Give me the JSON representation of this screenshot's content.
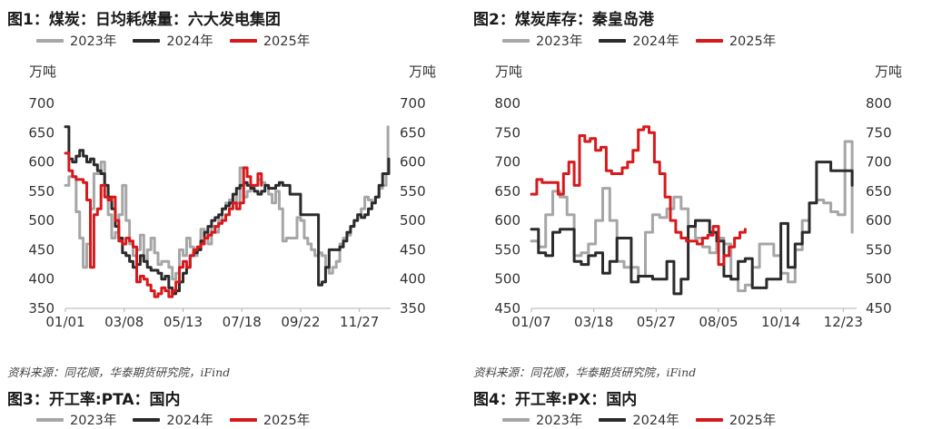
{
  "chart_data": [
    {
      "type": "line",
      "title": "图1：煤炭：日均耗煤量：六大发电集团",
      "ylabel_left": "万吨",
      "ylabel_right": "万吨",
      "ylim": [
        350,
        700
      ],
      "yticks": [
        350,
        400,
        450,
        500,
        550,
        600,
        650,
        700
      ],
      "xlim": [
        0,
        365
      ],
      "xticks": [
        {
          "label": "01/01",
          "day": 0
        },
        {
          "label": "03/08",
          "day": 66
        },
        {
          "label": "05/13",
          "day": 132
        },
        {
          "label": "07/18",
          "day": 198
        },
        {
          "label": "09/22",
          "day": 264
        },
        {
          "label": "11/27",
          "day": 330
        }
      ],
      "legend_position": "top-left",
      "grid": false,
      "series": [
        {
          "name": "2023年",
          "color": "#a6a6a6",
          "x": [
            0,
            4,
            8,
            12,
            16,
            20,
            24,
            28,
            32,
            36,
            40,
            44,
            48,
            52,
            56,
            60,
            64,
            68,
            72,
            76,
            80,
            84,
            88,
            92,
            96,
            100,
            104,
            108,
            112,
            116,
            120,
            124,
            128,
            132,
            136,
            140,
            144,
            148,
            152,
            156,
            160,
            164,
            168,
            172,
            176,
            180,
            184,
            188,
            192,
            196,
            200,
            204,
            208,
            212,
            216,
            220,
            224,
            228,
            232,
            236,
            240,
            244,
            248,
            252,
            256,
            260,
            264,
            268,
            272,
            276,
            280,
            284,
            288,
            292,
            296,
            300,
            304,
            308,
            312,
            316,
            320,
            324,
            328,
            332,
            336,
            340,
            344,
            348,
            352,
            356,
            360,
            362
          ],
          "values": [
            560,
            575,
            575,
            515,
            470,
            420,
            460,
            520,
            580,
            580,
            600,
            560,
            510,
            470,
            480,
            510,
            560,
            500,
            460,
            440,
            450,
            475,
            430,
            450,
            470,
            445,
            425,
            430,
            430,
            420,
            400,
            410,
            450,
            440,
            470,
            455,
            440,
            450,
            485,
            480,
            460,
            490,
            480,
            500,
            520,
            530,
            535,
            545,
            530,
            590,
            540,
            550,
            555,
            560,
            570,
            565,
            560,
            545,
            530,
            550,
            520,
            465,
            470,
            470,
            470,
            505,
            500,
            470,
            460,
            450,
            440,
            445,
            440,
            420,
            410,
            420,
            430,
            460,
            470,
            475,
            490,
            500,
            510,
            520,
            540,
            535,
            530,
            540,
            555,
            560,
            580,
            660
          ]
        },
        {
          "name": "2024年",
          "color": "#2b2b2b",
          "x": [
            0,
            4,
            8,
            12,
            16,
            20,
            24,
            28,
            32,
            36,
            40,
            44,
            48,
            52,
            56,
            60,
            64,
            68,
            72,
            76,
            80,
            84,
            88,
            92,
            96,
            100,
            104,
            108,
            112,
            116,
            120,
            124,
            128,
            132,
            136,
            140,
            144,
            148,
            152,
            156,
            160,
            164,
            168,
            172,
            176,
            180,
            184,
            188,
            192,
            196,
            200,
            204,
            208,
            212,
            216,
            220,
            224,
            228,
            232,
            236,
            240,
            244,
            248,
            252,
            256,
            260,
            264,
            268,
            272,
            276,
            280,
            284,
            288,
            292,
            296,
            300,
            304,
            308,
            312,
            316,
            320,
            324,
            328,
            332,
            336,
            340,
            344,
            348,
            352,
            356,
            360,
            363
          ],
          "values": [
            660,
            605,
            600,
            610,
            620,
            610,
            600,
            605,
            595,
            585,
            580,
            560,
            540,
            520,
            490,
            470,
            445,
            440,
            430,
            420,
            425,
            440,
            430,
            420,
            415,
            415,
            410,
            400,
            405,
            385,
            375,
            380,
            395,
            410,
            420,
            440,
            445,
            450,
            465,
            480,
            490,
            500,
            505,
            510,
            520,
            525,
            530,
            545,
            555,
            560,
            565,
            560,
            555,
            550,
            545,
            550,
            560,
            555,
            555,
            560,
            565,
            560,
            560,
            545,
            545,
            545,
            510,
            510,
            510,
            510,
            510,
            390,
            395,
            420,
            450,
            450,
            450,
            455,
            465,
            480,
            490,
            500,
            510,
            505,
            510,
            520,
            530,
            540,
            560,
            580,
            580,
            605
          ]
        },
        {
          "name": "2025年",
          "color": "#d7191c",
          "x": [
            0,
            4,
            8,
            12,
            16,
            20,
            24,
            28,
            32,
            36,
            40,
            44,
            48,
            52,
            56,
            60,
            64,
            68,
            72,
            76,
            80,
            84,
            88,
            92,
            96,
            100,
            104,
            108,
            112,
            116,
            120,
            124,
            128,
            132,
            136,
            140,
            144,
            148,
            152,
            156,
            160,
            164,
            168,
            172,
            176,
            180,
            184,
            188,
            192,
            196,
            200,
            204,
            208,
            212,
            216,
            220
          ],
          "values": [
            615,
            585,
            575,
            570,
            570,
            565,
            535,
            420,
            510,
            520,
            560,
            540,
            535,
            540,
            500,
            465,
            460,
            470,
            465,
            455,
            395,
            405,
            400,
            390,
            380,
            370,
            375,
            385,
            380,
            370,
            380,
            395,
            420,
            430,
            420,
            440,
            450,
            455,
            460,
            470,
            475,
            480,
            490,
            495,
            500,
            510,
            520,
            530,
            520,
            530,
            590,
            575,
            560,
            560,
            580,
            560
          ]
        }
      ]
    },
    {
      "type": "line",
      "title": "图2：煤炭库存：秦皇岛港",
      "ylabel_left": "万吨",
      "ylabel_right": "万吨",
      "ylim": [
        450,
        800
      ],
      "yticks": [
        450,
        500,
        550,
        600,
        650,
        700,
        750,
        800
      ],
      "xlim": [
        0,
        365
      ],
      "xticks": [
        {
          "label": "01/07",
          "day": 0
        },
        {
          "label": "03/18",
          "day": 70
        },
        {
          "label": "05/27",
          "day": 140
        },
        {
          "label": "08/05",
          "day": 210
        },
        {
          "label": "10/14",
          "day": 280
        },
        {
          "label": "12/23",
          "day": 350
        }
      ],
      "legend_position": "top-left",
      "grid": false,
      "series": [
        {
          "name": "2023年",
          "color": "#a6a6a6",
          "x": [
            0,
            8,
            16,
            24,
            32,
            40,
            48,
            56,
            64,
            72,
            80,
            88,
            96,
            104,
            112,
            120,
            128,
            136,
            144,
            152,
            160,
            168,
            176,
            184,
            192,
            200,
            208,
            216,
            224,
            232,
            240,
            248,
            256,
            264,
            272,
            280,
            288,
            296,
            304,
            312,
            320,
            328,
            336,
            344,
            352,
            360
          ],
          "values": [
            565,
            555,
            610,
            650,
            640,
            610,
            540,
            545,
            560,
            600,
            655,
            600,
            530,
            520,
            520,
            505,
            580,
            610,
            605,
            620,
            640,
            620,
            590,
            570,
            555,
            545,
            570,
            560,
            500,
            480,
            490,
            520,
            560,
            560,
            540,
            510,
            495,
            550,
            600,
            630,
            635,
            630,
            615,
            610,
            735,
            580
          ]
        },
        {
          "name": "2024年",
          "color": "#2b2b2b",
          "x": [
            0,
            8,
            16,
            24,
            32,
            40,
            48,
            56,
            64,
            72,
            80,
            88,
            96,
            104,
            112,
            120,
            128,
            136,
            144,
            152,
            160,
            168,
            176,
            184,
            192,
            200,
            208,
            216,
            224,
            232,
            240,
            248,
            256,
            264,
            272,
            280,
            288,
            296,
            304,
            312,
            320,
            328,
            336,
            344,
            352,
            360
          ],
          "values": [
            585,
            545,
            540,
            580,
            585,
            585,
            530,
            525,
            540,
            545,
            510,
            530,
            570,
            570,
            495,
            505,
            505,
            500,
            500,
            530,
            475,
            500,
            590,
            600,
            600,
            580,
            565,
            505,
            500,
            530,
            535,
            485,
            485,
            500,
            500,
            595,
            520,
            560,
            580,
            630,
            700,
            700,
            685,
            685,
            685,
            660
          ]
        },
        {
          "name": "2025年",
          "color": "#d7191c",
          "x": [
            0,
            6,
            12,
            18,
            24,
            30,
            36,
            42,
            48,
            54,
            60,
            66,
            72,
            78,
            84,
            90,
            96,
            102,
            108,
            114,
            120,
            126,
            132,
            138,
            144,
            150,
            156,
            162,
            168,
            174,
            180,
            186,
            192,
            198,
            204,
            210,
            216,
            222,
            228,
            234,
            240
          ],
          "values": [
            645,
            670,
            665,
            665,
            665,
            645,
            680,
            700,
            660,
            745,
            735,
            740,
            720,
            725,
            685,
            680,
            680,
            690,
            700,
            720,
            755,
            760,
            750,
            700,
            680,
            640,
            600,
            580,
            570,
            565,
            565,
            560,
            570,
            575,
            590,
            525,
            540,
            555,
            570,
            580,
            585
          ]
        }
      ]
    }
  ],
  "sources": {
    "left": "资料来源：同花顺，华泰期货研究院，iFind",
    "right": "资料来源：同花顺，华泰期货研究院，iFind"
  },
  "next_titles": {
    "left": "图3：开工率:PTA：国内",
    "right": "图4：开工率:PX：国内"
  }
}
